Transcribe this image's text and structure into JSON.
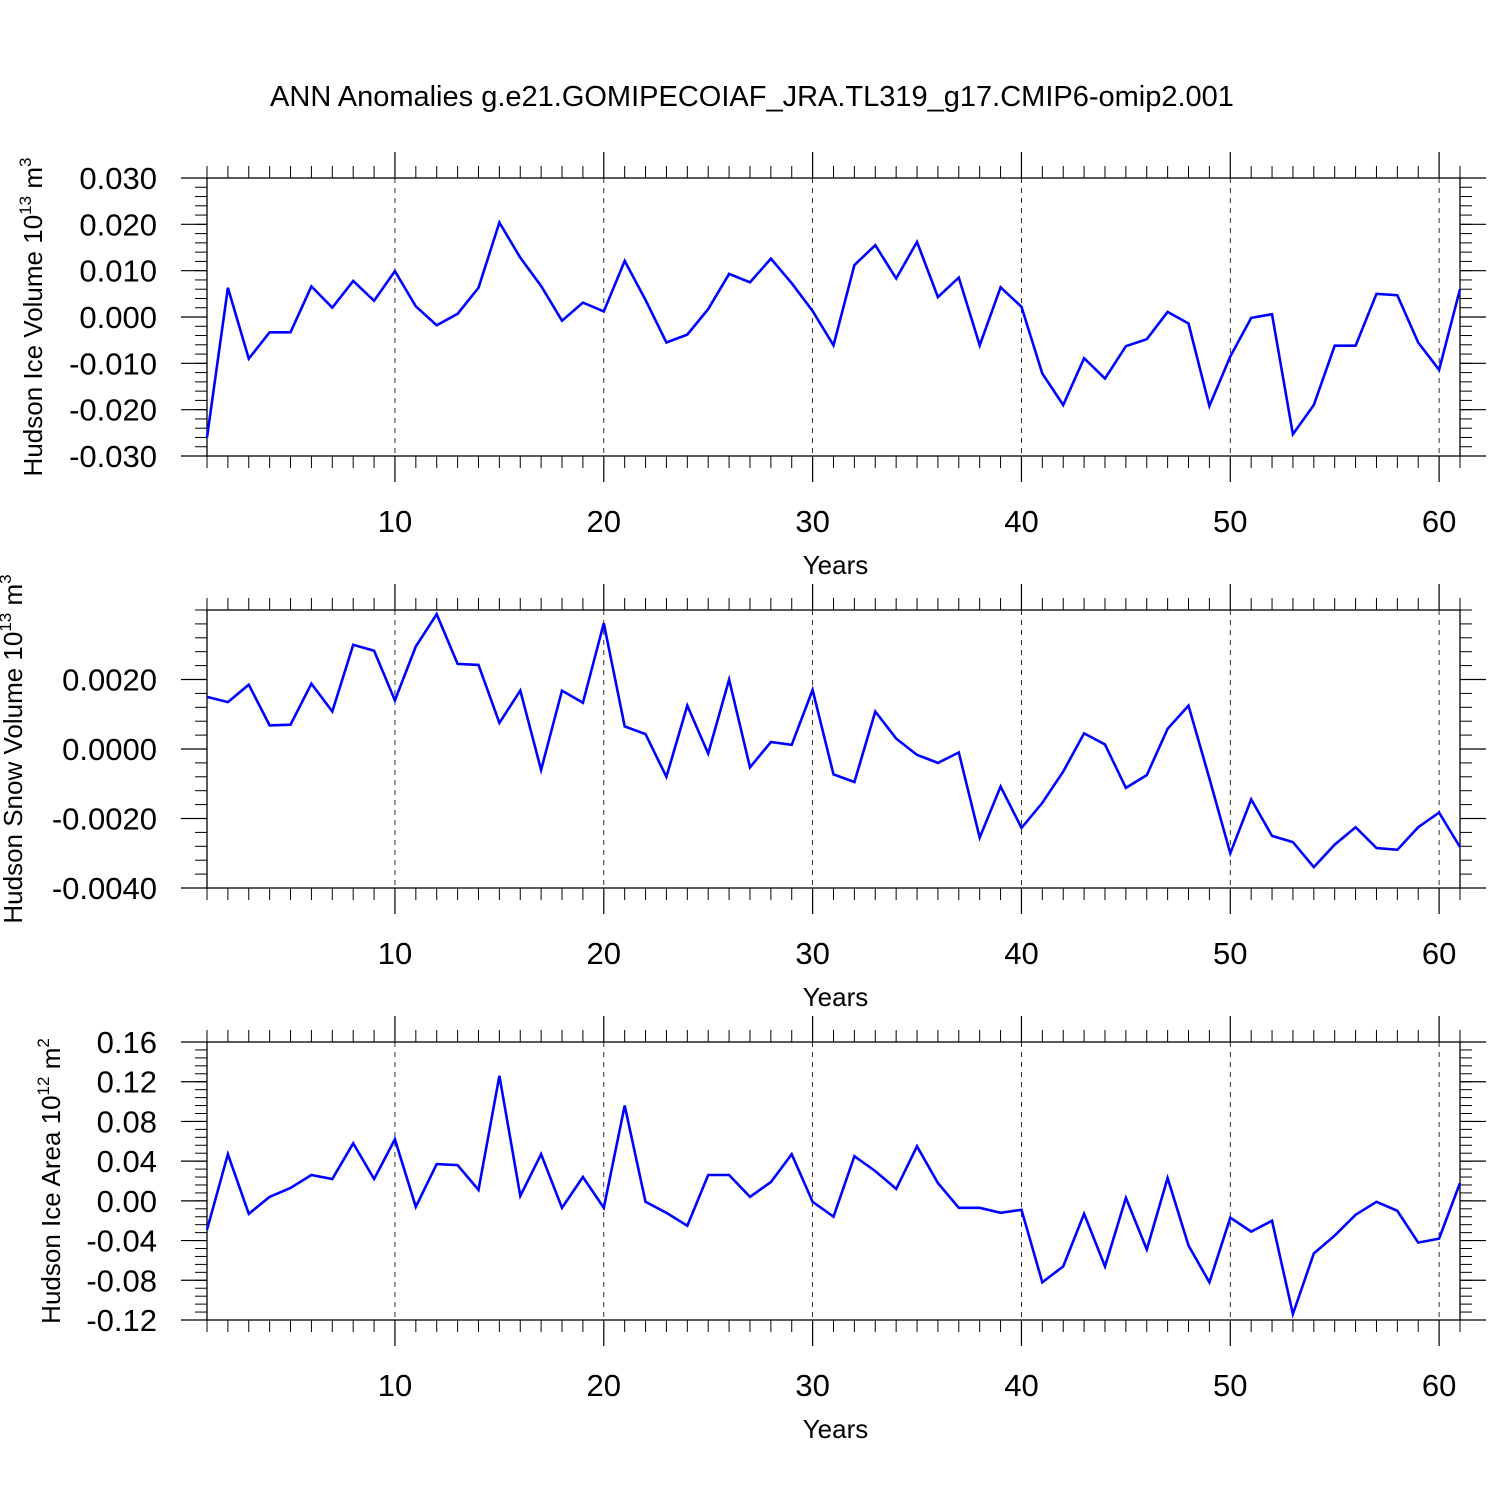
{
  "title": "ANN Anomalies g.e21.GOMIPECOIAF_JRA.TL319_g17.CMIP6-omip2.001",
  "chart_data": [
    {
      "type": "line",
      "ylabel": "Hudson Ice Volume 10",
      "ylabel_sup": "13",
      "ylabel_unit": "m",
      "ylabel_unit_sup": "3",
      "xlabel": "Years",
      "xlim": [
        1,
        61
      ],
      "ylim": [
        -0.03,
        0.03
      ],
      "yticks": [
        -0.03,
        -0.02,
        -0.01,
        0.0,
        0.01,
        0.02,
        0.03
      ],
      "ytick_labels": [
        "-0.030",
        "-0.020",
        "-0.010",
        "0.000",
        "0.010",
        "0.020",
        "0.030"
      ],
      "xticks": [
        10,
        20,
        30,
        40,
        50,
        60
      ],
      "xtick_labels": [
        "10",
        "20",
        "30",
        "40",
        "50",
        "60"
      ],
      "color": "#0000ff",
      "x": [
        1,
        2,
        3,
        4,
        5,
        6,
        7,
        8,
        9,
        10,
        11,
        12,
        13,
        14,
        15,
        16,
        17,
        18,
        19,
        20,
        21,
        22,
        23,
        24,
        25,
        26,
        27,
        28,
        29,
        30,
        31,
        32,
        33,
        34,
        35,
        36,
        37,
        38,
        39,
        40,
        41,
        42,
        43,
        44,
        45,
        46,
        47,
        48,
        49,
        50,
        51,
        52,
        53,
        54,
        55,
        56,
        57,
        58,
        59,
        60,
        61
      ],
      "y": [
        -0.026,
        0.0063,
        -0.009,
        -0.0033,
        -0.0033,
        0.0066,
        0.002,
        0.0078,
        0.0035,
        0.0099,
        0.0023,
        -0.0018,
        0.0007,
        0.0063,
        0.0204,
        0.0128,
        0.0067,
        -0.0008,
        0.0031,
        0.0012,
        0.0121,
        0.0037,
        -0.0055,
        -0.0038,
        0.0017,
        0.0093,
        0.0075,
        0.0126,
        0.0073,
        0.0013,
        -0.0061,
        0.0112,
        0.0155,
        0.0083,
        0.0162,
        0.0043,
        0.0085,
        -0.0061,
        0.0064,
        0.0022,
        -0.0122,
        -0.019,
        -0.0089,
        -0.0133,
        -0.0063,
        -0.0048,
        0.0011,
        -0.0014,
        -0.0192,
        -0.0085,
        -0.0002,
        0.0006,
        -0.0253,
        -0.019,
        -0.0062,
        -0.0062,
        0.005,
        0.0047,
        -0.0055,
        -0.0114,
        0.006
      ]
    },
    {
      "type": "line",
      "ylabel": "Hudson Snow Volume 10",
      "ylabel_sup": "13",
      "ylabel_unit": "m",
      "ylabel_unit_sup": "3",
      "xlabel": "Years",
      "xlim": [
        1,
        61
      ],
      "ylim": [
        -0.004,
        0.004
      ],
      "yticks": [
        -0.004,
        -0.002,
        0.0,
        0.002
      ],
      "ytick_labels": [
        "-0.0040",
        "-0.0020",
        "0.0000",
        "0.0020"
      ],
      "xticks": [
        10,
        20,
        30,
        40,
        50,
        60
      ],
      "xtick_labels": [
        "10",
        "20",
        "30",
        "40",
        "50",
        "60"
      ],
      "color": "#0000ff",
      "x": [
        1,
        2,
        3,
        4,
        5,
        6,
        7,
        8,
        9,
        10,
        11,
        12,
        13,
        14,
        15,
        16,
        17,
        18,
        19,
        20,
        21,
        22,
        23,
        24,
        25,
        26,
        27,
        28,
        29,
        30,
        31,
        32,
        33,
        34,
        35,
        36,
        37,
        38,
        39,
        40,
        41,
        42,
        43,
        44,
        45,
        46,
        47,
        48,
        49,
        50,
        51,
        52,
        53,
        54,
        55,
        56,
        57,
        58,
        59,
        60,
        61
      ],
      "y": [
        0.0015,
        0.00135,
        0.00185,
        0.00068,
        0.0007,
        0.00188,
        0.00108,
        0.003,
        0.00283,
        0.0014,
        0.00295,
        0.00388,
        0.00245,
        0.00242,
        0.00075,
        0.00168,
        -0.0006,
        0.00168,
        0.00133,
        0.00362,
        0.00065,
        0.00043,
        -0.0008,
        0.00125,
        -0.00013,
        0.002,
        -0.00053,
        0.0002,
        0.00012,
        0.0017,
        -0.00073,
        -0.00095,
        0.00108,
        0.0003,
        -0.00017,
        -0.0004,
        -0.0001,
        -0.00255,
        -0.00108,
        -0.00227,
        -0.00155,
        -0.00065,
        0.00045,
        0.00013,
        -0.00112,
        -0.00075,
        0.00058,
        0.00125,
        -0.00085,
        -0.003,
        -0.00145,
        -0.0025,
        -0.00268,
        -0.0034,
        -0.00275,
        -0.00225,
        -0.00285,
        -0.0029,
        -0.00225,
        -0.00183,
        -0.00282
      ]
    },
    {
      "type": "line",
      "ylabel": "Hudson Ice Area 10",
      "ylabel_sup": "12",
      "ylabel_unit": "m",
      "ylabel_unit_sup": "2",
      "xlabel": "Years",
      "xlim": [
        1,
        61
      ],
      "ylim": [
        -0.12,
        0.16
      ],
      "yticks": [
        -0.12,
        -0.08,
        -0.04,
        0.0,
        0.04,
        0.08,
        0.12,
        0.16
      ],
      "ytick_labels": [
        "-0.12",
        "-0.08",
        "-0.04",
        "0.00",
        "0.04",
        "0.08",
        "0.12",
        "0.16"
      ],
      "xticks": [
        10,
        20,
        30,
        40,
        50,
        60
      ],
      "xtick_labels": [
        "10",
        "20",
        "30",
        "40",
        "50",
        "60"
      ],
      "color": "#0000ff",
      "x": [
        1,
        2,
        3,
        4,
        5,
        6,
        7,
        8,
        9,
        10,
        11,
        12,
        13,
        14,
        15,
        16,
        17,
        18,
        19,
        20,
        21,
        22,
        23,
        24,
        25,
        26,
        27,
        28,
        29,
        30,
        31,
        32,
        33,
        34,
        35,
        36,
        37,
        38,
        39,
        40,
        41,
        42,
        43,
        44,
        45,
        46,
        47,
        48,
        49,
        50,
        51,
        52,
        53,
        54,
        55,
        56,
        57,
        58,
        59,
        60,
        61
      ],
      "y": [
        -0.029,
        0.047,
        -0.013,
        0.004,
        0.013,
        0.026,
        0.022,
        0.058,
        0.022,
        0.062,
        -0.006,
        0.037,
        0.036,
        0.011,
        0.126,
        0.005,
        0.047,
        -0.007,
        0.024,
        -0.007,
        0.096,
        -0.001,
        -0.012,
        -0.025,
        0.026,
        0.026,
        0.004,
        0.019,
        0.047,
        -0.001,
        -0.016,
        0.045,
        0.03,
        0.012,
        0.055,
        0.018,
        -0.007,
        -0.007,
        -0.012,
        -0.009,
        -0.082,
        -0.066,
        -0.013,
        -0.066,
        0.003,
        -0.049,
        0.023,
        -0.045,
        -0.082,
        -0.017,
        -0.031,
        -0.02,
        -0.114,
        -0.053,
        -0.035,
        -0.014,
        -0.001,
        -0.01,
        -0.042,
        -0.038,
        0.018
      ]
    }
  ]
}
